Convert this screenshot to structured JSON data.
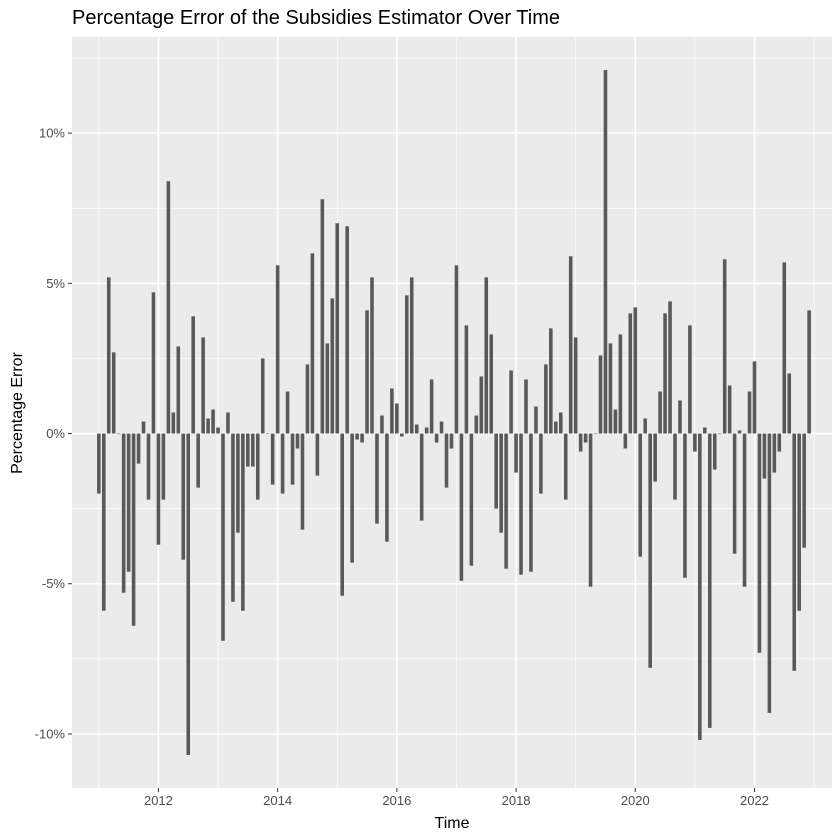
{
  "chart_data": {
    "type": "bar",
    "title": "Percentage Error of the Subsidies Estimator Over Time",
    "xlabel": "Time",
    "ylabel": "Percentage Error",
    "x_ticks": [
      "2012",
      "2014",
      "2016",
      "2018",
      "2020",
      "2022"
    ],
    "x_tick_values": [
      2012,
      2014,
      2016,
      2018,
      2020,
      2022
    ],
    "y_ticks": [
      "-10%",
      "-5%",
      "0%",
      "5%",
      "10%"
    ],
    "y_tick_values": [
      -10,
      -5,
      0,
      5,
      10
    ],
    "xlim": [
      2010.55,
      2023.3
    ],
    "ylim": [
      -11.8,
      13.2
    ],
    "bar_width_years": 0.06,
    "grid": true,
    "panel_background": "#ebebeb",
    "grid_color": "#ffffff",
    "bar_color": "#595959",
    "series": [
      {
        "x_start": 2011.0,
        "x_step": 0.08333,
        "values": [
          -2.0,
          -5.9,
          5.2,
          2.7,
          0.0,
          -5.3,
          -4.6,
          -6.4,
          -1.0,
          0.4,
          -2.2,
          4.7,
          -3.7,
          -2.2,
          8.4,
          0.7,
          2.9,
          -4.2,
          -10.7,
          3.9,
          -1.8,
          3.2,
          0.5,
          0.8,
          0.2,
          -6.9,
          0.7,
          -5.6,
          -3.3,
          -5.9,
          -1.1,
          -1.1,
          -2.2,
          2.5,
          0.0,
          -1.7,
          5.6,
          -2.0,
          1.4,
          -1.7,
          -0.5,
          -3.2,
          2.3,
          6.0,
          -1.4,
          7.8,
          3.0,
          4.5,
          7.0,
          -5.4,
          6.9,
          -4.3,
          -0.2,
          -0.3,
          4.1,
          5.2,
          -3.0,
          0.6,
          -3.6,
          1.5,
          1.0,
          -0.1,
          4.6,
          5.2,
          0.3,
          -2.9,
          0.2,
          1.8,
          -0.3,
          0.4,
          -1.8,
          -0.5,
          5.6,
          -4.9,
          3.6,
          -4.4,
          0.6,
          1.9,
          5.2,
          3.3,
          -2.5,
          -3.3,
          -4.5,
          2.1,
          -1.3,
          -4.7,
          1.8,
          -4.6,
          0.9,
          -2.0,
          2.3,
          3.5,
          0.4,
          0.7,
          -2.2,
          5.9,
          3.2,
          -0.6,
          -0.3,
          -5.1,
          0.0,
          2.6,
          12.1,
          3.0,
          0.8,
          3.3,
          -0.5,
          4.0,
          4.2,
          -4.1,
          0.5,
          -7.8,
          -1.6,
          1.4,
          4.0,
          4.4,
          -2.2,
          1.1,
          -4.8,
          3.6,
          -0.6,
          -10.2,
          0.2,
          -9.8,
          -1.2,
          0.0,
          5.8,
          1.6,
          -4.0,
          0.1,
          -5.1,
          1.4,
          2.4,
          -7.3,
          -1.5,
          -9.3,
          -1.3,
          -0.6,
          5.7,
          2.0,
          -7.9,
          -5.9,
          -3.8,
          4.1
        ]
      }
    ]
  }
}
